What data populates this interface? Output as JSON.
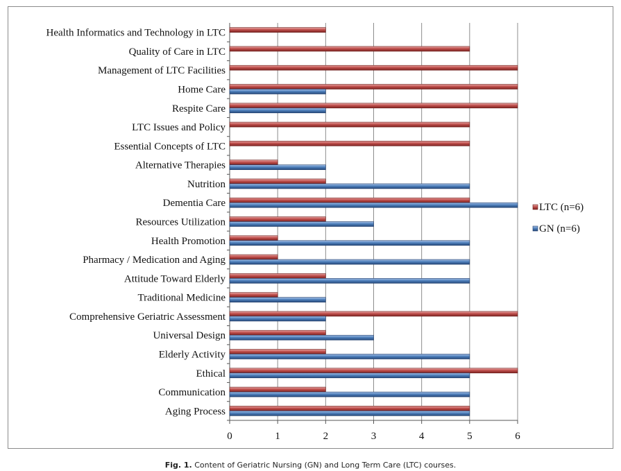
{
  "chart_data": {
    "type": "bar",
    "orientation": "horizontal",
    "categories": [
      "Health Informatics and Technology in LTC",
      "Quality of Care in LTC",
      "Management of LTC Facilities",
      "Home Care",
      "Respite Care",
      "LTC Issues and Policy",
      "Essential Concepts of LTC",
      "Alternative Therapies",
      "Nutrition",
      "Dementia Care",
      "Resources Utilization",
      "Health Promotion",
      "Pharmacy / Medication and Aging",
      "Attitude Toward Elderly",
      "Traditional Medicine",
      "Comprehensive Geriatric Assessment",
      "Universal Design",
      "Elderly Activity",
      "Ethical",
      "Communication",
      "Aging Process"
    ],
    "series": [
      {
        "name": "LTC (n=6)",
        "color": "#c0504d",
        "values": [
          2,
          5,
          6,
          6,
          6,
          5,
          5,
          1,
          2,
          5,
          2,
          1,
          1,
          2,
          1,
          6,
          2,
          2,
          6,
          2,
          5
        ]
      },
      {
        "name": "GN (n=6)",
        "color": "#4f81bd",
        "values": [
          0,
          0,
          0,
          2,
          2,
          0,
          0,
          2,
          5,
          6,
          3,
          5,
          5,
          5,
          2,
          2,
          3,
          5,
          5,
          5,
          5
        ]
      }
    ],
    "xlim": [
      0,
      6
    ],
    "xticks": [
      "0",
      "1",
      "2",
      "3",
      "4",
      "5",
      "6"
    ],
    "grid": true,
    "legend_position": "right"
  },
  "caption": {
    "label": "Fig. 1.",
    "text": "Content of Geriatric Nursing (GN) and Long Term Care (LTC) courses."
  }
}
